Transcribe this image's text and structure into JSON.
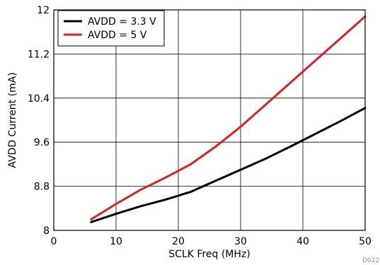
{
  "chart_data": {
    "type": "line",
    "xlabel": "SCLK Freq (MHz)",
    "ylabel": "AVDD Current (mA)",
    "xlim": [
      0,
      50
    ],
    "ylim": [
      8,
      12
    ],
    "x_ticks": [
      0,
      10,
      20,
      30,
      40,
      50
    ],
    "y_ticks": [
      8,
      8.8,
      9.6,
      10.4,
      11.2,
      12
    ],
    "grid": true,
    "legend_position": "top-left",
    "series": [
      {
        "name": "AVDD = 3.3 V",
        "color": "#000000",
        "x": [
          6,
          10,
          14,
          18,
          22,
          26,
          30,
          34,
          38,
          42,
          46,
          50
        ],
        "y": [
          8.15,
          8.3,
          8.44,
          8.56,
          8.7,
          8.9,
          9.1,
          9.3,
          9.52,
          9.75,
          9.98,
          10.22
        ]
      },
      {
        "name": "AVDD = 5 V",
        "color": "#e02020",
        "x": [
          6,
          10,
          14,
          18,
          22,
          26,
          30,
          34,
          38,
          42,
          46,
          50
        ],
        "y": [
          8.2,
          8.48,
          8.74,
          8.96,
          9.2,
          9.52,
          9.88,
          10.28,
          10.68,
          11.08,
          11.48,
          11.88
        ]
      }
    ],
    "footnote": "D022"
  }
}
